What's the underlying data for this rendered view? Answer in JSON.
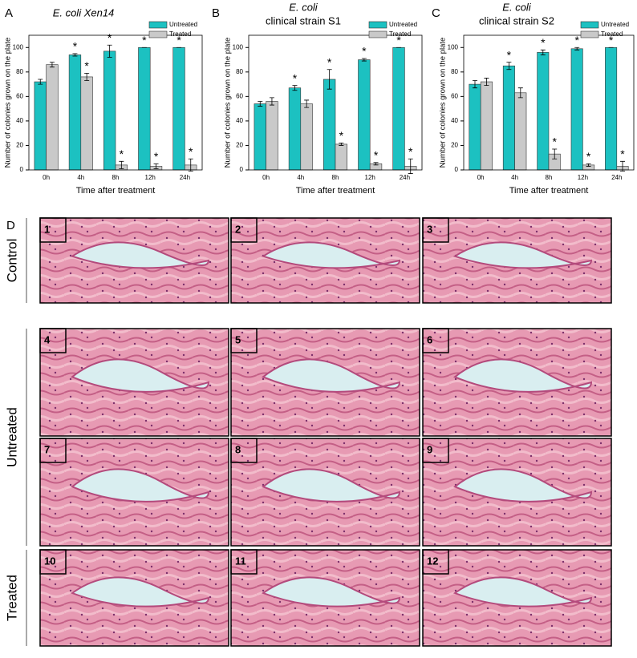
{
  "chart_data": [
    {
      "type": "bar",
      "panel_label": "A",
      "title": "E. coli Xen14",
      "x_label": "Time after treatment",
      "y_label": "Number of colonies grown on the plate",
      "categories": [
        "0h",
        "4h",
        "8h",
        "12h",
        "24h"
      ],
      "ylim": [
        0,
        110
      ],
      "yticks": [
        0,
        20,
        40,
        60,
        80,
        100
      ],
      "legend": "top-right",
      "significance_marker": "*",
      "series": [
        {
          "name": "Untreated",
          "color": "#1cc1c1",
          "values": [
            72,
            94,
            97,
            100,
            100
          ],
          "errors": [
            2,
            1,
            5,
            0,
            0
          ],
          "significant": [
            false,
            true,
            true,
            true,
            true
          ]
        },
        {
          "name": "Treated",
          "color": "#c9c9c9",
          "values": [
            86,
            76,
            4,
            3,
            4
          ],
          "errors": [
            2,
            3,
            3,
            2,
            5
          ],
          "significant": [
            false,
            true,
            true,
            true,
            true
          ]
        }
      ]
    },
    {
      "type": "bar",
      "panel_label": "B",
      "title": "E. coli",
      "subtitle": "clinical strain S1",
      "x_label": "Time after treatment",
      "y_label": "Number of colonies grown on the plate",
      "categories": [
        "0h",
        "4h",
        "8h",
        "12h",
        "24h"
      ],
      "ylim": [
        0,
        110
      ],
      "yticks": [
        0,
        20,
        40,
        60,
        80,
        100
      ],
      "legend": "top-right",
      "significance_marker": "*",
      "series": [
        {
          "name": "Untreated",
          "color": "#1cc1c1",
          "values": [
            54,
            67,
            74,
            90,
            100
          ],
          "errors": [
            2,
            2,
            8,
            1,
            0
          ],
          "significant": [
            false,
            true,
            true,
            true,
            true
          ]
        },
        {
          "name": "Treated",
          "color": "#c9c9c9",
          "values": [
            56,
            54,
            21,
            5,
            3
          ],
          "errors": [
            3,
            3,
            1,
            1,
            6
          ],
          "significant": [
            false,
            false,
            true,
            true,
            true
          ]
        }
      ]
    },
    {
      "type": "bar",
      "panel_label": "C",
      "title": "E. coli",
      "subtitle": "clinical strain S2",
      "x_label": "Time after treatment",
      "y_label": "Number of colonies grown on the plate",
      "categories": [
        "0h",
        "4h",
        "8h",
        "12h",
        "24h"
      ],
      "ylim": [
        0,
        110
      ],
      "yticks": [
        0,
        20,
        40,
        60,
        80,
        100
      ],
      "legend": "top-right",
      "significance_marker": "*",
      "series": [
        {
          "name": "Untreated",
          "color": "#1cc1c1",
          "values": [
            70,
            85,
            96,
            99,
            100
          ],
          "errors": [
            3,
            3,
            2,
            1,
            0
          ],
          "significant": [
            false,
            true,
            true,
            true,
            true
          ]
        },
        {
          "name": "Treated",
          "color": "#c9c9c9",
          "values": [
            72,
            63,
            13,
            4,
            3
          ],
          "errors": [
            3,
            4,
            4,
            1,
            4
          ],
          "significant": [
            false,
            false,
            true,
            true,
            true
          ]
        }
      ]
    }
  ],
  "panel_d": {
    "panel_label": "D",
    "groups": [
      {
        "label": "Control",
        "images": [
          "1",
          "2",
          "3"
        ]
      },
      {
        "label": "Untreated",
        "images": [
          "4",
          "5",
          "6",
          "7",
          "8",
          "9"
        ]
      },
      {
        "label": "Treated",
        "images": [
          "10",
          "11",
          "12"
        ]
      }
    ]
  }
}
